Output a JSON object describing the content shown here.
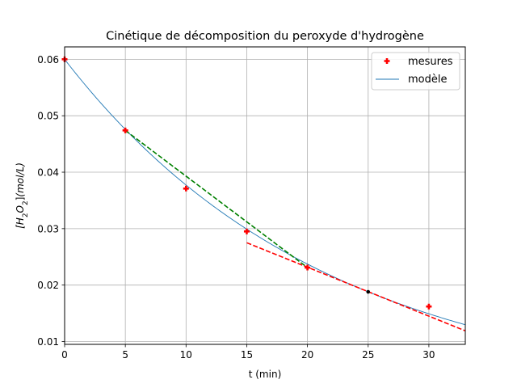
{
  "chart_data": {
    "type": "scatter",
    "title": "Cinétique de décomposition du peroxyde d'hydrogène",
    "xlabel": "t (min)",
    "ylabel": "[H2O2](mol/L)",
    "xlim": [
      0,
      33
    ],
    "ylim": [
      0.0095,
      0.0622
    ],
    "x_ticks": [
      0,
      5,
      10,
      15,
      20,
      25,
      30
    ],
    "y_ticks": [
      0.01,
      0.02,
      0.03,
      0.04,
      0.05,
      0.06
    ],
    "x_tick_labels": [
      "0",
      "5",
      "10",
      "15",
      "20",
      "25",
      "30"
    ],
    "y_tick_labels": [
      "0.01",
      "0.02",
      "0.03",
      "0.04",
      "0.05",
      "0.06"
    ],
    "grid": true,
    "legend_position": "top-right",
    "series": [
      {
        "name": "mesures",
        "kind": "markers",
        "color": "#ff0000",
        "x": [
          0,
          5,
          10,
          15,
          20,
          30
        ],
        "y": [
          0.06,
          0.0474,
          0.0371,
          0.0295,
          0.0231,
          0.0162
        ]
      },
      {
        "name": "modèle",
        "kind": "line",
        "color": "#1f77b4",
        "model": {
          "c0": 0.06,
          "k": 0.0464
        },
        "x_range": [
          0,
          33
        ]
      }
    ],
    "annotations": [
      {
        "kind": "dashed-segment",
        "color": "#008000",
        "x": [
          5,
          20
        ],
        "y": [
          0.0474,
          0.0231
        ]
      },
      {
        "kind": "dashed-segment",
        "color": "#ff0000",
        "x": [
          15,
          33
        ],
        "y": [
          0.0275,
          0.0119
        ]
      },
      {
        "kind": "point",
        "color": "#000000",
        "x": 25,
        "y": 0.0188
      }
    ]
  }
}
